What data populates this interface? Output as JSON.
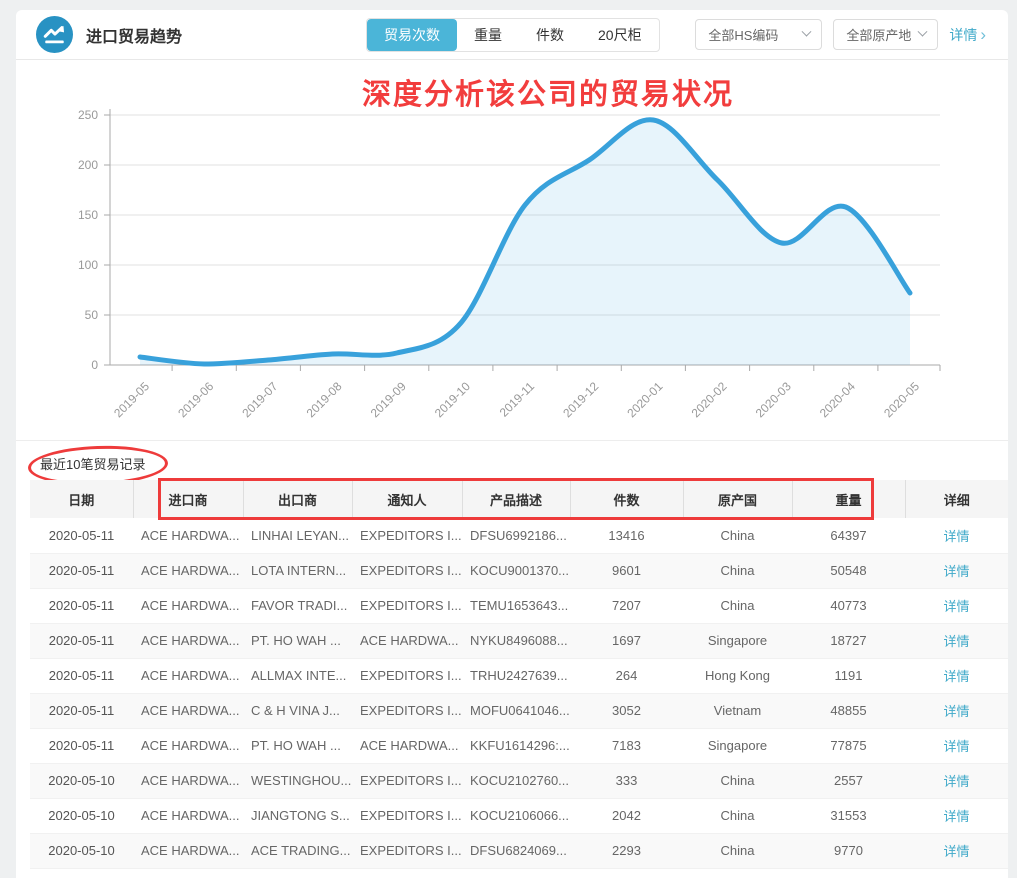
{
  "header": {
    "title": "进口贸易趋势",
    "tabs": [
      {
        "label": "贸易次数",
        "active": true
      },
      {
        "label": "重量",
        "active": false
      },
      {
        "label": "件数",
        "active": false
      },
      {
        "label": "20尺柜",
        "active": false
      }
    ],
    "filters": [
      {
        "label": "全部HS编码"
      },
      {
        "label": "全部原产地"
      }
    ],
    "detail_link": "详情"
  },
  "annotations": {
    "chart_title": "深度分析该公司的贸易状况",
    "annotation_color": "#f23d3d"
  },
  "chart_data": {
    "type": "area",
    "x": [
      "2019-05",
      "2019-06",
      "2019-07",
      "2019-08",
      "2019-09",
      "2019-10",
      "2019-11",
      "2019-12",
      "2020-01",
      "2020-02",
      "2020-03",
      "2020-04",
      "2020-05"
    ],
    "series": [
      {
        "name": "贸易次数",
        "values": [
          8,
          1,
          5,
          11,
          12,
          42,
          160,
          205,
          245,
          185,
          122,
          158,
          72
        ]
      }
    ],
    "ylim": [
      0,
      250
    ],
    "yticks": [
      0,
      50,
      100,
      150,
      200,
      250
    ],
    "line_color": "#38a1db",
    "fill_color": "rgba(56,161,219,0.12)",
    "grid": true,
    "legend_position": "none",
    "title": "",
    "xlabel": "",
    "ylabel": ""
  },
  "table": {
    "section_title": "最近10笔贸易记录",
    "columns": [
      "日期",
      "进口商",
      "出口商",
      "通知人",
      "产品描述",
      "件数",
      "原产国",
      "重量",
      "详细"
    ],
    "detail_label": "详情",
    "rows": [
      [
        "2020-05-11",
        "ACE HARDWA...",
        "LINHAI LEYAN...",
        "EXPEDITORS I...",
        "DFSU6992186...",
        "13416",
        "China",
        "64397"
      ],
      [
        "2020-05-11",
        "ACE HARDWA...",
        "LOTA INTERN...",
        "EXPEDITORS I...",
        "KOCU9001370...",
        "9601",
        "China",
        "50548"
      ],
      [
        "2020-05-11",
        "ACE HARDWA...",
        "FAVOR TRADI...",
        "EXPEDITORS I...",
        "TEMU1653643...",
        "7207",
        "China",
        "40773"
      ],
      [
        "2020-05-11",
        "ACE HARDWA...",
        "PT. HO WAH ...",
        "ACE HARDWA...",
        "NYKU8496088...",
        "1697",
        "Singapore",
        "18727"
      ],
      [
        "2020-05-11",
        "ACE HARDWA...",
        "ALLMAX INTE...",
        "EXPEDITORS I...",
        "TRHU2427639...",
        "264",
        "Hong Kong",
        "1191"
      ],
      [
        "2020-05-11",
        "ACE HARDWA...",
        "C & H VINA J...",
        "EXPEDITORS I...",
        "MOFU0641046...",
        "3052",
        "Vietnam",
        "48855"
      ],
      [
        "2020-05-11",
        "ACE HARDWA...",
        "PT. HO WAH ...",
        "ACE HARDWA...",
        "KKFU1614296:...",
        "7183",
        "Singapore",
        "77875"
      ],
      [
        "2020-05-10",
        "ACE HARDWA...",
        "WESTINGHOU...",
        "EXPEDITORS I...",
        "KOCU2102760...",
        "333",
        "China",
        "2557"
      ],
      [
        "2020-05-10",
        "ACE HARDWA...",
        "JIANGTONG S...",
        "EXPEDITORS I...",
        "KOCU2106066...",
        "2042",
        "China",
        "31553"
      ],
      [
        "2020-05-10",
        "ACE HARDWA...",
        "ACE TRADING...",
        "EXPEDITORS I...",
        "DFSU6824069...",
        "2293",
        "China",
        "9770"
      ]
    ]
  }
}
